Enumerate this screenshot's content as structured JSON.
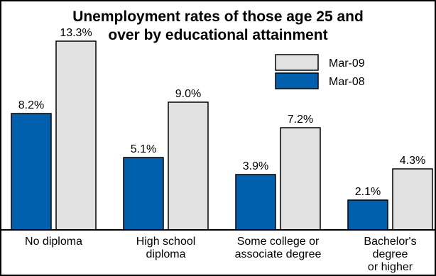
{
  "chart_data": {
    "type": "bar",
    "title_lines": [
      "Unemployment rates of those age 25 and",
      "over by educational attainment"
    ],
    "categories": [
      [
        "No diploma"
      ],
      [
        "High school",
        "diploma"
      ],
      [
        "Some college or",
        "associate degree"
      ],
      [
        "Bachelor's",
        "degree",
        "or higher"
      ]
    ],
    "series": [
      {
        "name": "Mar-08",
        "values": [
          8.2,
          5.1,
          3.9,
          2.1
        ],
        "labels": [
          "8.2%",
          "5.1%",
          "3.9%",
          "2.1%"
        ],
        "color": "#0060ad"
      },
      {
        "name": "Mar-09",
        "values": [
          13.3,
          9.0,
          7.2,
          4.3
        ],
        "labels": [
          "13.3%",
          "9.0%",
          "7.2%",
          "4.3%"
        ],
        "color": "#e1e1e1"
      }
    ],
    "legend_order": [
      "Mar-09",
      "Mar-08"
    ],
    "legend_position": "top-right",
    "ylim": [
      0,
      14.7
    ],
    "grid": false,
    "bar_outline_color": "#000000",
    "background_color": "#ffffff"
  }
}
